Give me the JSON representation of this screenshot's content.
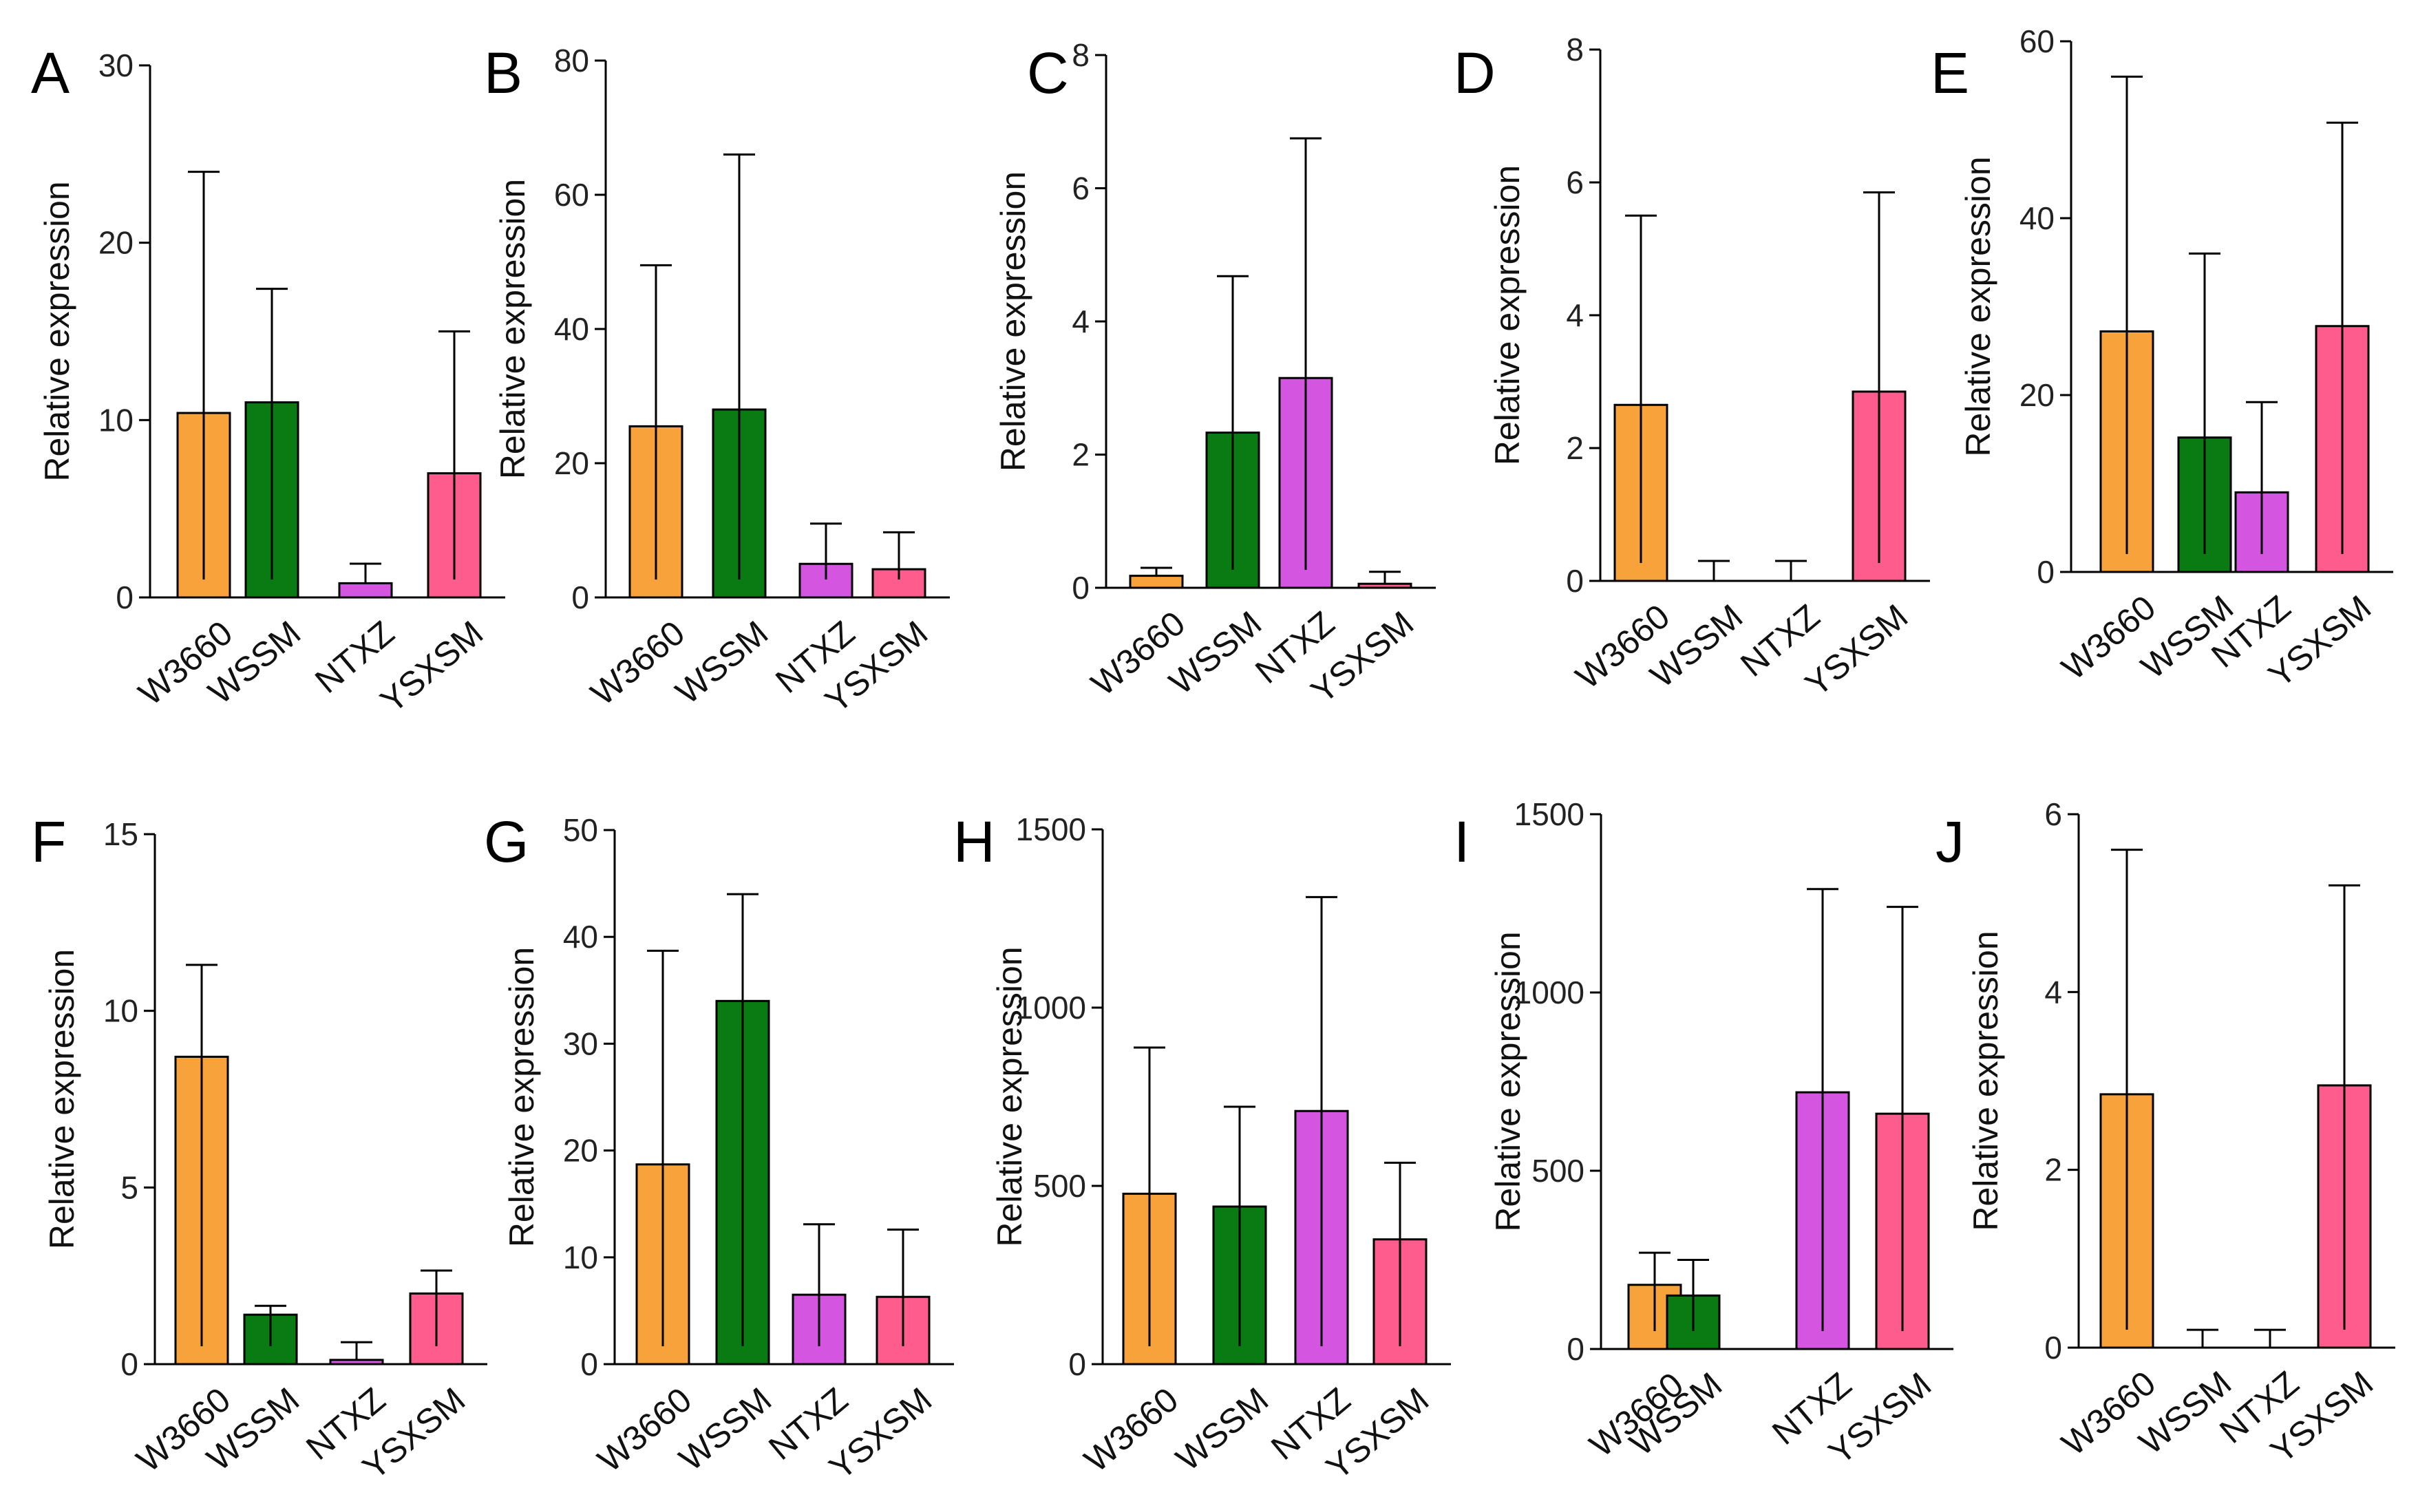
{
  "colors": {
    "W3660": "#f7a23a",
    "WSSM": "#0a7a13",
    "NTXZ": "#d455e0",
    "YSXSM": "#ff5c8e"
  },
  "chart_data": [
    {
      "type": "bar",
      "panel_label": "A",
      "title": "",
      "xlabel": "",
      "ylabel": "Relative expression",
      "categories": [
        "W3660",
        "WSSM",
        "NTXZ",
        "YSXSM"
      ],
      "values": [
        10.4,
        11.0,
        0.8,
        7.0
      ],
      "errors": [
        13.6,
        6.4,
        1.1,
        8.0
      ],
      "ylim": [
        0,
        30
      ],
      "yticks": [
        0,
        10,
        20,
        30
      ]
    },
    {
      "type": "bar",
      "panel_label": "B",
      "title": "",
      "xlabel": "",
      "ylabel": "Relative expression",
      "categories": [
        "W3660",
        "WSSM",
        "NTXZ",
        "YSXSM"
      ],
      "values": [
        25.5,
        28.0,
        5.0,
        4.2
      ],
      "errors": [
        24.0,
        38.0,
        6.0,
        5.5
      ],
      "ylim": [
        0,
        80
      ],
      "yticks": [
        0,
        20,
        40,
        60,
        80
      ]
    },
    {
      "type": "bar",
      "panel_label": "C",
      "title": "",
      "xlabel": "",
      "ylabel": "Relative expression",
      "categories": [
        "W3660",
        "WSSM",
        "NTXZ",
        "YSXSM"
      ],
      "values": [
        0.18,
        2.33,
        3.15,
        0.06
      ],
      "errors": [
        0.12,
        2.35,
        3.6,
        0.18
      ],
      "ylim": [
        0,
        8
      ],
      "yticks": [
        0,
        2,
        4,
        6,
        8
      ]
    },
    {
      "type": "bar",
      "panel_label": "D",
      "title": "",
      "xlabel": "",
      "ylabel": "Relative expression",
      "categories": [
        "W3660",
        "WSSM",
        "NTXZ",
        "YSXSM"
      ],
      "values": [
        2.65,
        0.0,
        0.0,
        2.85
      ],
      "errors": [
        2.85,
        0.3,
        0.3,
        3.0
      ],
      "ylim": [
        0,
        8
      ],
      "yticks": [
        0,
        2,
        4,
        6,
        8
      ]
    },
    {
      "type": "bar",
      "panel_label": "E",
      "title": "",
      "xlabel": "",
      "ylabel": "Relative expression",
      "categories": [
        "W3660",
        "WSSM",
        "NTXZ",
        "YSXSM"
      ],
      "values": [
        27.2,
        15.2,
        9.0,
        27.8
      ],
      "errors": [
        28.8,
        20.8,
        10.2,
        23.0
      ],
      "ylim": [
        0,
        60
      ],
      "yticks": [
        0,
        20,
        40,
        60
      ]
    },
    {
      "type": "bar",
      "panel_label": "F",
      "title": "",
      "xlabel": "",
      "ylabel": "Relative expression",
      "categories": [
        "W3660",
        "WSSM",
        "NTXZ",
        "YSXSM"
      ],
      "values": [
        8.7,
        1.4,
        0.12,
        2.0
      ],
      "errors": [
        2.6,
        0.25,
        0.5,
        0.65
      ],
      "ylim": [
        0,
        15
      ],
      "yticks": [
        0,
        5,
        10,
        15
      ]
    },
    {
      "type": "bar",
      "panel_label": "G",
      "title": "",
      "xlabel": "",
      "ylabel": "Relative expression",
      "categories": [
        "W3660",
        "WSSM",
        "NTXZ",
        "YSXSM"
      ],
      "values": [
        18.7,
        34.0,
        6.5,
        6.3
      ],
      "errors": [
        20.0,
        10.0,
        6.6,
        6.3
      ],
      "ylim": [
        0,
        50
      ],
      "yticks": [
        0,
        10,
        20,
        30,
        40,
        50
      ]
    },
    {
      "type": "bar",
      "panel_label": "H",
      "title": "",
      "xlabel": "",
      "ylabel": "Relative expression",
      "categories": [
        "W3660",
        "WSSM",
        "NTXZ",
        "YSXSM"
      ],
      "values": [
        478,
        442,
        710,
        350
      ],
      "errors": [
        410,
        280,
        600,
        215
      ],
      "ylim": [
        0,
        1500
      ],
      "yticks": [
        0,
        500,
        1000,
        1500
      ]
    },
    {
      "type": "bar",
      "panel_label": "I",
      "title": "",
      "xlabel": "",
      "ylabel": "Relative expression",
      "categories": [
        "W3660",
        "WSSM",
        "NTXZ",
        "YSXSM"
      ],
      "values": [
        180,
        150,
        720,
        660
      ],
      "errors": [
        90,
        100,
        570,
        580
      ],
      "ylim": [
        0,
        1500
      ],
      "yticks": [
        0,
        500,
        1000,
        1500
      ]
    },
    {
      "type": "bar",
      "panel_label": "J",
      "title": "",
      "xlabel": "",
      "ylabel": "Relative expression",
      "categories": [
        "W3660",
        "WSSM",
        "NTXZ",
        "YSXSM"
      ],
      "values": [
        2.85,
        0.0,
        0.0,
        2.95
      ],
      "errors": [
        2.75,
        0.2,
        0.2,
        2.25
      ],
      "ylim": [
        0,
        6
      ],
      "yticks": [
        0,
        2,
        4,
        6
      ]
    }
  ]
}
